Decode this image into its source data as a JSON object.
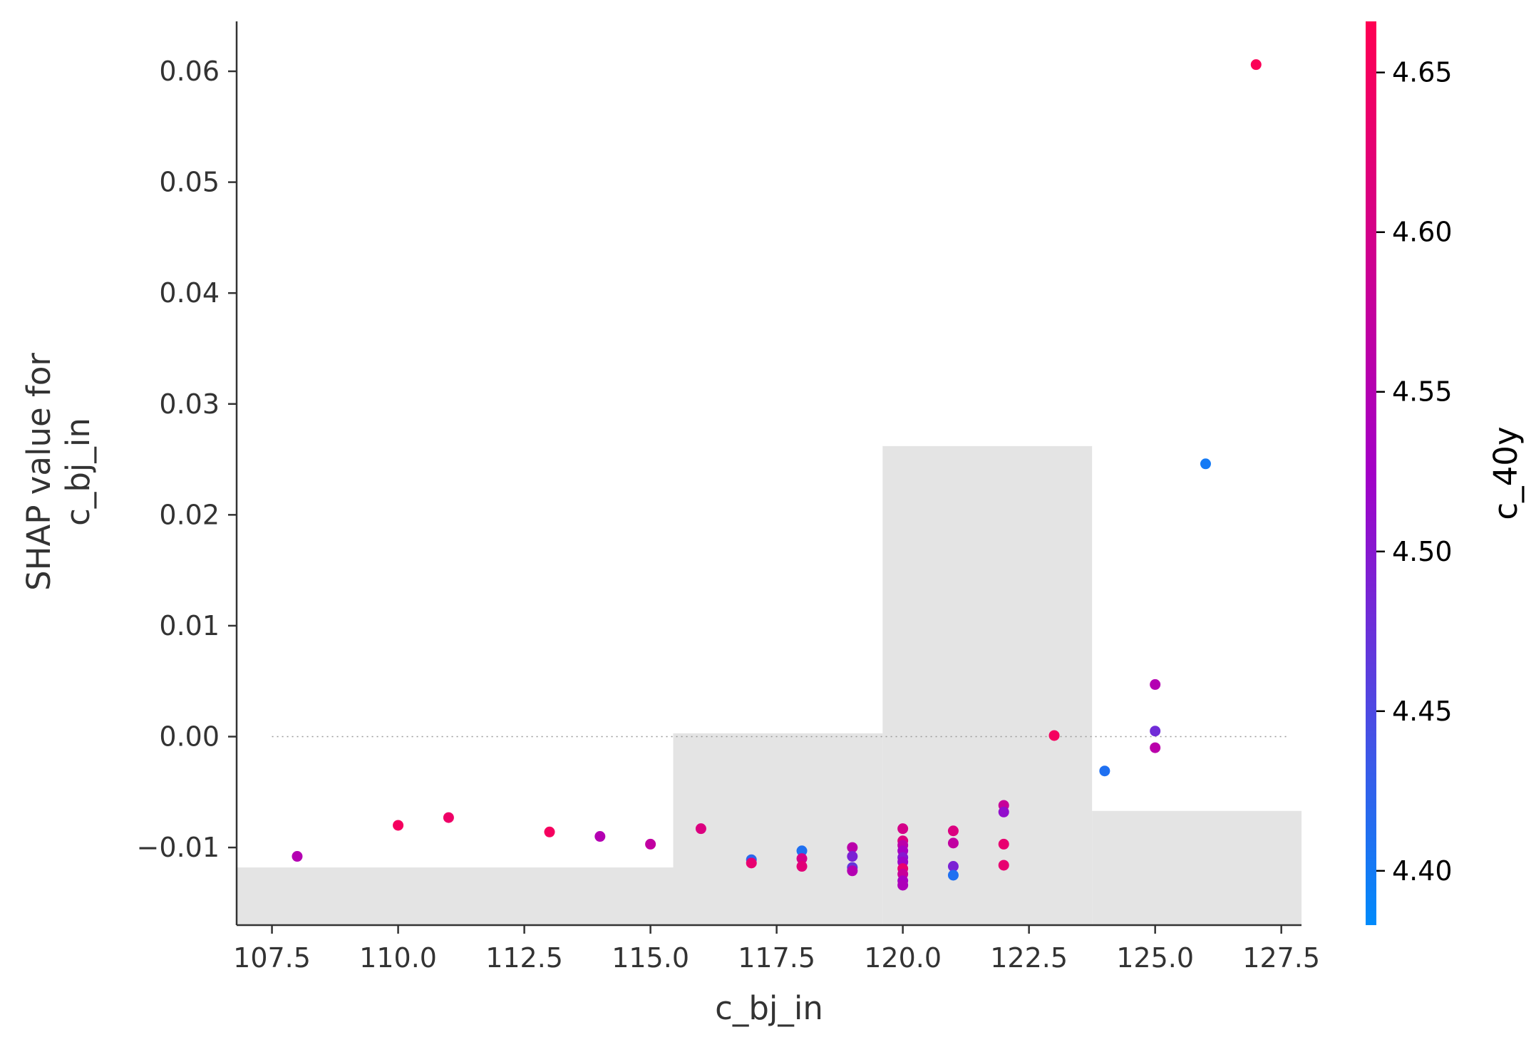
{
  "chart_data": {
    "type": "scatter",
    "title": "",
    "xlabel": "c_bj_in",
    "ylabel_lines": [
      "SHAP value for",
      "c_bj_in"
    ],
    "colorbar_label": "c_40y",
    "xlim": [
      106.8,
      127.9
    ],
    "ylim": [
      -0.017,
      0.0645
    ],
    "xticks": [
      107.5,
      110.0,
      112.5,
      115.0,
      117.5,
      120.0,
      122.5,
      125.0,
      127.5
    ],
    "xtick_labels": [
      "107.5",
      "110.0",
      "112.5",
      "115.0",
      "117.5",
      "120.0",
      "122.5",
      "125.0",
      "127.5"
    ],
    "yticks": [
      -0.01,
      0.0,
      0.01,
      0.02,
      0.03,
      0.04,
      0.05,
      0.06
    ],
    "ytick_labels": [
      "−0.01",
      "0.00",
      "0.01",
      "0.02",
      "0.03",
      "0.04",
      "0.05",
      "0.06"
    ],
    "color_range": [
      4.383,
      4.666
    ],
    "cbar_ticks": [
      4.4,
      4.45,
      4.5,
      4.55,
      4.6,
      4.65
    ],
    "cbar_tick_labels": [
      "4.40",
      "4.45",
      "4.50",
      "4.55",
      "4.60",
      "4.65"
    ],
    "colors": {
      "low": "#008bfb",
      "mid": "#a300c7",
      "high": "#ff0052",
      "histogram": "#e4e4e4",
      "zero_line": "#999999",
      "axis": "#333333"
    },
    "grid": false,
    "zero_line": true,
    "histogram_bins": [
      {
        "x0": 106.8,
        "x1": 115.45,
        "value": -0.0118
      },
      {
        "x0": 115.45,
        "x1": 119.6,
        "value": 0.0003
      },
      {
        "x0": 119.6,
        "x1": 123.75,
        "value": 0.0262
      },
      {
        "x0": 123.75,
        "x1": 127.9,
        "value": -0.0067
      }
    ],
    "points": [
      {
        "x": 108,
        "y": -0.0108,
        "c": 4.55
      },
      {
        "x": 110,
        "y": -0.008,
        "c": 4.65
      },
      {
        "x": 111,
        "y": -0.0073,
        "c": 4.64
      },
      {
        "x": 113,
        "y": -0.0086,
        "c": 4.65
      },
      {
        "x": 114,
        "y": -0.009,
        "c": 4.55
      },
      {
        "x": 115,
        "y": -0.0097,
        "c": 4.57
      },
      {
        "x": 116,
        "y": -0.0083,
        "c": 4.61
      },
      {
        "x": 117,
        "y": -0.0111,
        "c": 4.42
      },
      {
        "x": 117,
        "y": -0.0114,
        "c": 4.63
      },
      {
        "x": 118,
        "y": -0.0103,
        "c": 4.41
      },
      {
        "x": 118,
        "y": -0.011,
        "c": 4.6
      },
      {
        "x": 118,
        "y": -0.0117,
        "c": 4.62
      },
      {
        "x": 119,
        "y": -0.01,
        "c": 4.56
      },
      {
        "x": 119,
        "y": -0.0108,
        "c": 4.49
      },
      {
        "x": 119,
        "y": -0.0118,
        "c": 4.47
      },
      {
        "x": 119,
        "y": -0.0121,
        "c": 4.55
      },
      {
        "x": 120,
        "y": -0.0083,
        "c": 4.6
      },
      {
        "x": 120,
        "y": -0.0094,
        "c": 4.61
      },
      {
        "x": 120,
        "y": -0.0098,
        "c": 4.56
      },
      {
        "x": 120,
        "y": -0.0103,
        "c": 4.53
      },
      {
        "x": 120,
        "y": -0.0109,
        "c": 4.5
      },
      {
        "x": 120,
        "y": -0.0113,
        "c": 4.52
      },
      {
        "x": 120,
        "y": -0.0119,
        "c": 4.63
      },
      {
        "x": 120,
        "y": -0.0124,
        "c": 4.58
      },
      {
        "x": 120,
        "y": -0.013,
        "c": 4.53
      },
      {
        "x": 120,
        "y": -0.0134,
        "c": 4.54
      },
      {
        "x": 121,
        "y": -0.0085,
        "c": 4.61
      },
      {
        "x": 121,
        "y": -0.0096,
        "c": 4.57
      },
      {
        "x": 121,
        "y": -0.0117,
        "c": 4.49
      },
      {
        "x": 121,
        "y": -0.0125,
        "c": 4.41
      },
      {
        "x": 122,
        "y": -0.0062,
        "c": 4.58
      },
      {
        "x": 122,
        "y": -0.0068,
        "c": 4.51
      },
      {
        "x": 122,
        "y": -0.0097,
        "c": 4.63
      },
      {
        "x": 122,
        "y": -0.0116,
        "c": 4.63
      },
      {
        "x": 123,
        "y": 0.0001,
        "c": 4.65
      },
      {
        "x": 124,
        "y": -0.0031,
        "c": 4.41
      },
      {
        "x": 125,
        "y": 0.0047,
        "c": 4.55
      },
      {
        "x": 125,
        "y": 0.0005,
        "c": 4.48
      },
      {
        "x": 125,
        "y": -0.001,
        "c": 4.56
      },
      {
        "x": 126,
        "y": 0.0246,
        "c": 4.4
      },
      {
        "x": 127,
        "y": 0.0606,
        "c": 4.66
      }
    ]
  }
}
